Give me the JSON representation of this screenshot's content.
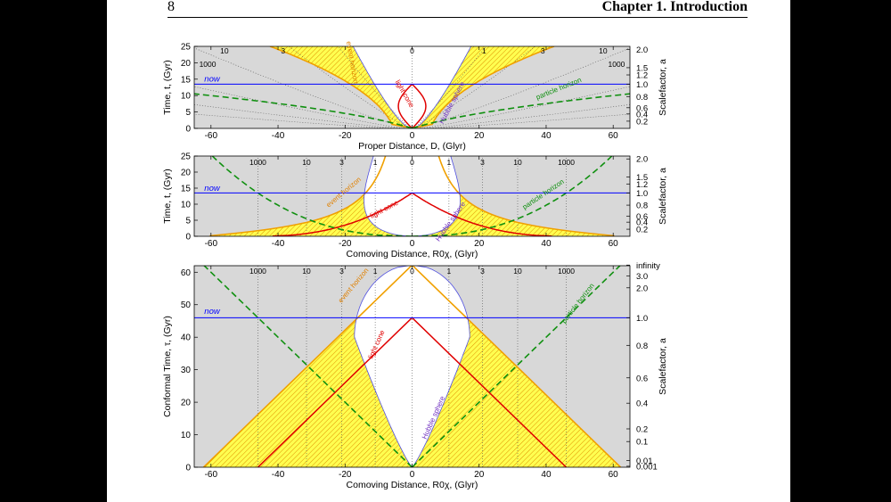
{
  "header": {
    "page_number": "8",
    "chapter_title": "Chapter 1.   Introduction"
  },
  "chart_data": [
    {
      "type": "line",
      "xlabel": "Proper Distance, D, (Glyr)",
      "ylabel": "Time, t, (Gyr)",
      "y2label": "Scalefactor, a",
      "xlim": [
        -65,
        65
      ],
      "ylim": [
        0,
        25
      ],
      "xticks": [
        -60,
        -40,
        -20,
        0,
        20,
        40,
        60
      ],
      "yticks": [
        0,
        5,
        10,
        15,
        20,
        25
      ],
      "y2ticks": [
        "0.2",
        "0.4",
        "0.6",
        "0.8",
        "1.0",
        "1.2",
        "1.5",
        "2.0"
      ],
      "y2tick_times": [
        2.2,
        4.4,
        6.3,
        9.7,
        13.5,
        16.3,
        18.5,
        24.1
      ],
      "now_t": 13.5,
      "redshift_labels": [
        {
          "text": "1000",
          "x": -61,
          "y": 18.8
        },
        {
          "text": "10",
          "x": -56,
          "y": 22.8
        },
        {
          "text": "3",
          "x": -38.5,
          "y": 22.8
        },
        {
          "text": "0",
          "x": 0,
          "y": 22.8
        },
        {
          "text": "1",
          "x": 21.5,
          "y": 22.8
        },
        {
          "text": "3",
          "x": 39,
          "y": 22.8
        },
        {
          "text": "10",
          "x": 57,
          "y": 22.8
        },
        {
          "text": "1000",
          "x": 61,
          "y": 18.8
        }
      ],
      "annotations": [
        {
          "text": "now",
          "x": -62,
          "y": 14.2,
          "color": "#0000ff"
        },
        {
          "text": "light cone",
          "x": -2.8,
          "y": 10.2,
          "color": "#e00000",
          "rotate": 60
        },
        {
          "text": "Hubble sphere",
          "x": 12.5,
          "y": 7.5,
          "color": "#7030c0",
          "rotate": -62
        },
        {
          "text": "particle horizon",
          "x": 44,
          "y": 11.5,
          "color": "#109010",
          "rotate": -22
        },
        {
          "text": "event horizon",
          "x": -18.5,
          "y": 20,
          "color": "#e08000",
          "rotate": 80
        }
      ]
    },
    {
      "type": "line",
      "xlabel": "Comoving Distance, R0χ, (Glyr)",
      "ylabel": "Time, t, (Gyr)",
      "y2label": "Scalefactor, a",
      "xlim": [
        -65,
        65
      ],
      "ylim": [
        0,
        25
      ],
      "xticks": [
        -60,
        -40,
        -20,
        0,
        20,
        40,
        60
      ],
      "yticks": [
        0,
        5,
        10,
        15,
        20,
        25
      ],
      "y2ticks": [
        "0.2",
        "0.4",
        "0.6",
        "0.8",
        "1.0",
        "1.2",
        "1.5",
        "2.0"
      ],
      "y2tick_times": [
        2.2,
        4.4,
        6.3,
        9.7,
        13.5,
        16.3,
        18.5,
        24.1
      ],
      "now_t": 13.5,
      "redshift_labels": [
        {
          "text": "1000",
          "x": -46,
          "y": 22.2
        },
        {
          "text": "10",
          "x": -31.5,
          "y": 22.2
        },
        {
          "text": "3",
          "x": -21,
          "y": 22.2
        },
        {
          "text": "1",
          "x": -11,
          "y": 22.2
        },
        {
          "text": "0",
          "x": 0,
          "y": 22.2
        },
        {
          "text": "1",
          "x": 11,
          "y": 22.2
        },
        {
          "text": "3",
          "x": 21,
          "y": 22.2
        },
        {
          "text": "10",
          "x": 31.5,
          "y": 22.2
        },
        {
          "text": "1000",
          "x": 46,
          "y": 22.2
        }
      ],
      "annotations": [
        {
          "text": "now",
          "x": -62,
          "y": 14.2,
          "color": "#0000ff"
        },
        {
          "text": "light cone",
          "x": -8,
          "y": 7.8,
          "color": "#e00000",
          "rotate": -28
        },
        {
          "text": "Hubble sphere",
          "x": 12,
          "y": 4.2,
          "color": "#7030c0",
          "rotate": -55
        },
        {
          "text": "particle horizon",
          "x": 39.5,
          "y": 12.5,
          "color": "#109010",
          "rotate": -34
        },
        {
          "text": "event horizon",
          "x": -20,
          "y": 13.2,
          "color": "#e08000",
          "rotate": -40
        }
      ]
    },
    {
      "type": "line",
      "xlabel": "Comoving Distance, R0χ, (Glyr)",
      "ylabel": "Conformal Time, τ, (Gyr)",
      "y2label": "Scalefactor, a",
      "xlim": [
        -65,
        65
      ],
      "ylim": [
        0,
        62
      ],
      "xticks": [
        -60,
        -40,
        -20,
        0,
        20,
        40,
        60
      ],
      "yticks": [
        0,
        10,
        20,
        30,
        40,
        50,
        60
      ],
      "y2ticks": [
        "0.001",
        "0.01",
        "0.1",
        "0.2",
        "0.4",
        "0.6",
        "0.8",
        "1.0",
        "2.0",
        "3.0",
        "infinity"
      ],
      "y2tick_taus": [
        0.3,
        2.1,
        7.9,
        11.8,
        19.7,
        27.5,
        37.5,
        46,
        55.2,
        58.8,
        62.2
      ],
      "now_tau": 46,
      "redshift_labels": [
        {
          "text": "1000",
          "x": -46,
          "y": 59.5
        },
        {
          "text": "10",
          "x": -31.5,
          "y": 59.5
        },
        {
          "text": "3",
          "x": -21,
          "y": 59.5
        },
        {
          "text": "1",
          "x": -11,
          "y": 59.5
        },
        {
          "text": "0",
          "x": 0,
          "y": 59.5
        },
        {
          "text": "1",
          "x": 11,
          "y": 59.5
        },
        {
          "text": "3",
          "x": 21,
          "y": 59.5
        },
        {
          "text": "10",
          "x": 31.5,
          "y": 59.5
        },
        {
          "text": "1000",
          "x": 46,
          "y": 59.5
        }
      ],
      "annotations": [
        {
          "text": "now",
          "x": -62,
          "y": 47.2,
          "color": "#0000ff"
        },
        {
          "text": "light cone",
          "x": -10,
          "y": 37.5,
          "color": "#e00000",
          "rotate": -66
        },
        {
          "text": "Hubble sphere",
          "x": 7,
          "y": 15,
          "color": "#7030c0",
          "rotate": -66
        },
        {
          "text": "particle horizon",
          "x": 50,
          "y": 50,
          "color": "#109010",
          "rotate": -52
        },
        {
          "text": "event horizon",
          "x": -17,
          "y": 55.5,
          "color": "#e08000",
          "rotate": -50
        }
      ]
    }
  ],
  "colors": {
    "background": "#d8d8d8",
    "now": "#0000ff",
    "light_cone": "#e00000",
    "hubble": "#5050e0",
    "particle_horizon": "#109010",
    "event_horizon": "#f0a000",
    "fill": "#ffff50",
    "hatch": "#e09000",
    "grid": "#555555"
  }
}
